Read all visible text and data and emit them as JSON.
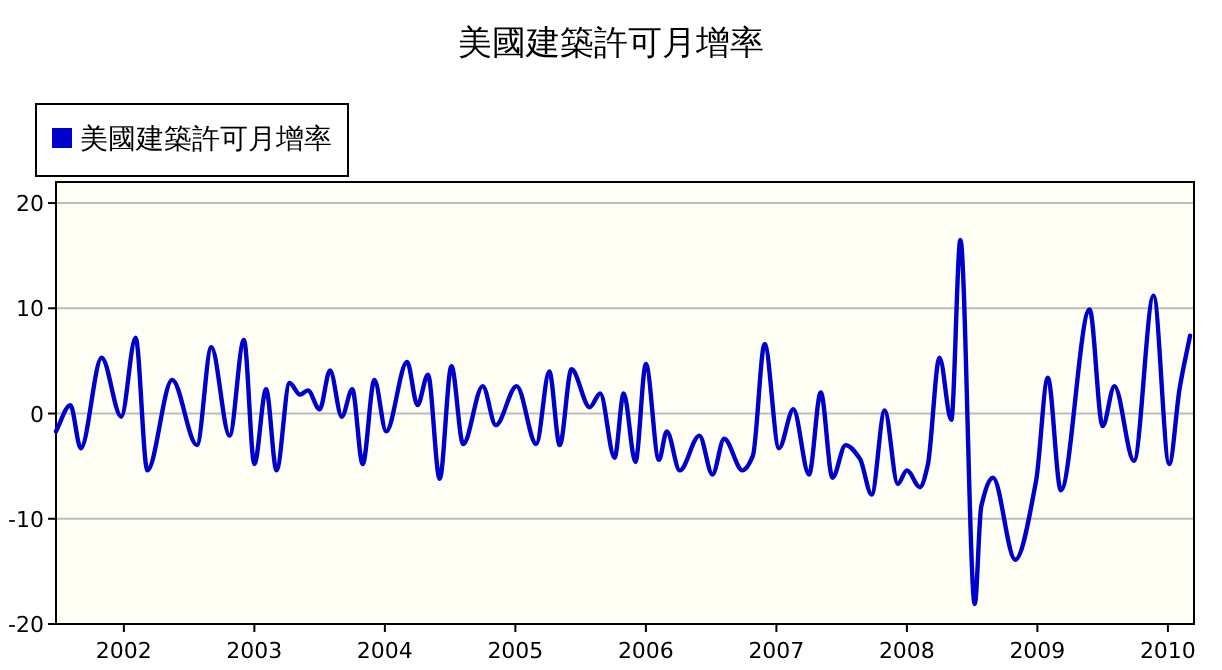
{
  "chart_data": {
    "type": "line",
    "title": "美國建築許可月增率",
    "x": [
      2001.48,
      2001.59,
      2001.67,
      2001.83,
      2001.98,
      2002.09,
      2002.18,
      2002.37,
      2002.56,
      2002.67,
      2002.81,
      2002.92,
      2003.0,
      2003.09,
      2003.17,
      2003.27,
      2003.35,
      2003.41,
      2003.5,
      2003.58,
      2003.67,
      2003.75,
      2003.83,
      2003.92,
      2004.01,
      2004.17,
      2004.25,
      2004.33,
      2004.42,
      2004.51,
      2004.6,
      2004.75,
      2004.85,
      2005.01,
      2005.16,
      2005.26,
      2005.34,
      2005.43,
      2005.57,
      2005.65,
      2005.76,
      2005.83,
      2005.92,
      2006.0,
      2006.1,
      2006.16,
      2006.26,
      2006.41,
      2006.51,
      2006.6,
      2006.74,
      2006.82,
      2006.91,
      2007.02,
      2007.13,
      2007.25,
      2007.34,
      2007.43,
      2007.53,
      2007.64,
      2007.73,
      2007.83,
      2007.93,
      2008.0,
      2008.1,
      2008.16,
      2008.25,
      2008.34,
      2008.41,
      2008.52,
      2008.57,
      2008.66,
      2008.83,
      2008.99,
      2009.08,
      2009.18,
      2009.4,
      2009.5,
      2009.59,
      2009.74,
      2009.89,
      2010.01,
      2010.09,
      2010.17
    ],
    "series": [
      {
        "name": "美國建築許可月增率",
        "color": "#0000cc",
        "values": [
          -1.7,
          0.8,
          -3.3,
          5.3,
          -0.3,
          7.2,
          -5.4,
          3.2,
          -3.0,
          6.3,
          -2.1,
          7.0,
          -4.8,
          2.3,
          -5.4,
          2.9,
          1.8,
          2.2,
          0.4,
          4.1,
          -0.3,
          2.3,
          -4.8,
          3.2,
          -1.7,
          4.9,
          0.8,
          3.7,
          -6.2,
          4.5,
          -2.9,
          2.6,
          -1.1,
          2.6,
          -2.9,
          4.0,
          -3.0,
          4.2,
          0.6,
          1.9,
          -4.2,
          1.9,
          -4.6,
          4.7,
          -4.4,
          -1.7,
          -5.4,
          -2.1,
          -5.8,
          -2.4,
          -5.4,
          -4.0,
          6.6,
          -3.3,
          0.4,
          -5.8,
          2.0,
          -6.1,
          -3.0,
          -4.3,
          -7.7,
          0.3,
          -6.7,
          -5.4,
          -7.0,
          -4.9,
          5.3,
          -0.6,
          16.5,
          -18.1,
          -8.8,
          -6.1,
          -13.9,
          -6.4,
          3.4,
          -7.3,
          9.9,
          -1.2,
          2.6,
          -4.5,
          11.2,
          -4.8,
          2.4,
          7.4
        ]
      }
    ],
    "xlim": [
      2001.48,
      2010.2
    ],
    "xticks": [
      2002,
      2003,
      2004,
      2005,
      2006,
      2007,
      2008,
      2009,
      2010
    ],
    "ylim": [
      -20,
      22
    ],
    "yticks": [
      -20,
      -10,
      0,
      10,
      20
    ],
    "grid": "y",
    "legend": "top left"
  }
}
